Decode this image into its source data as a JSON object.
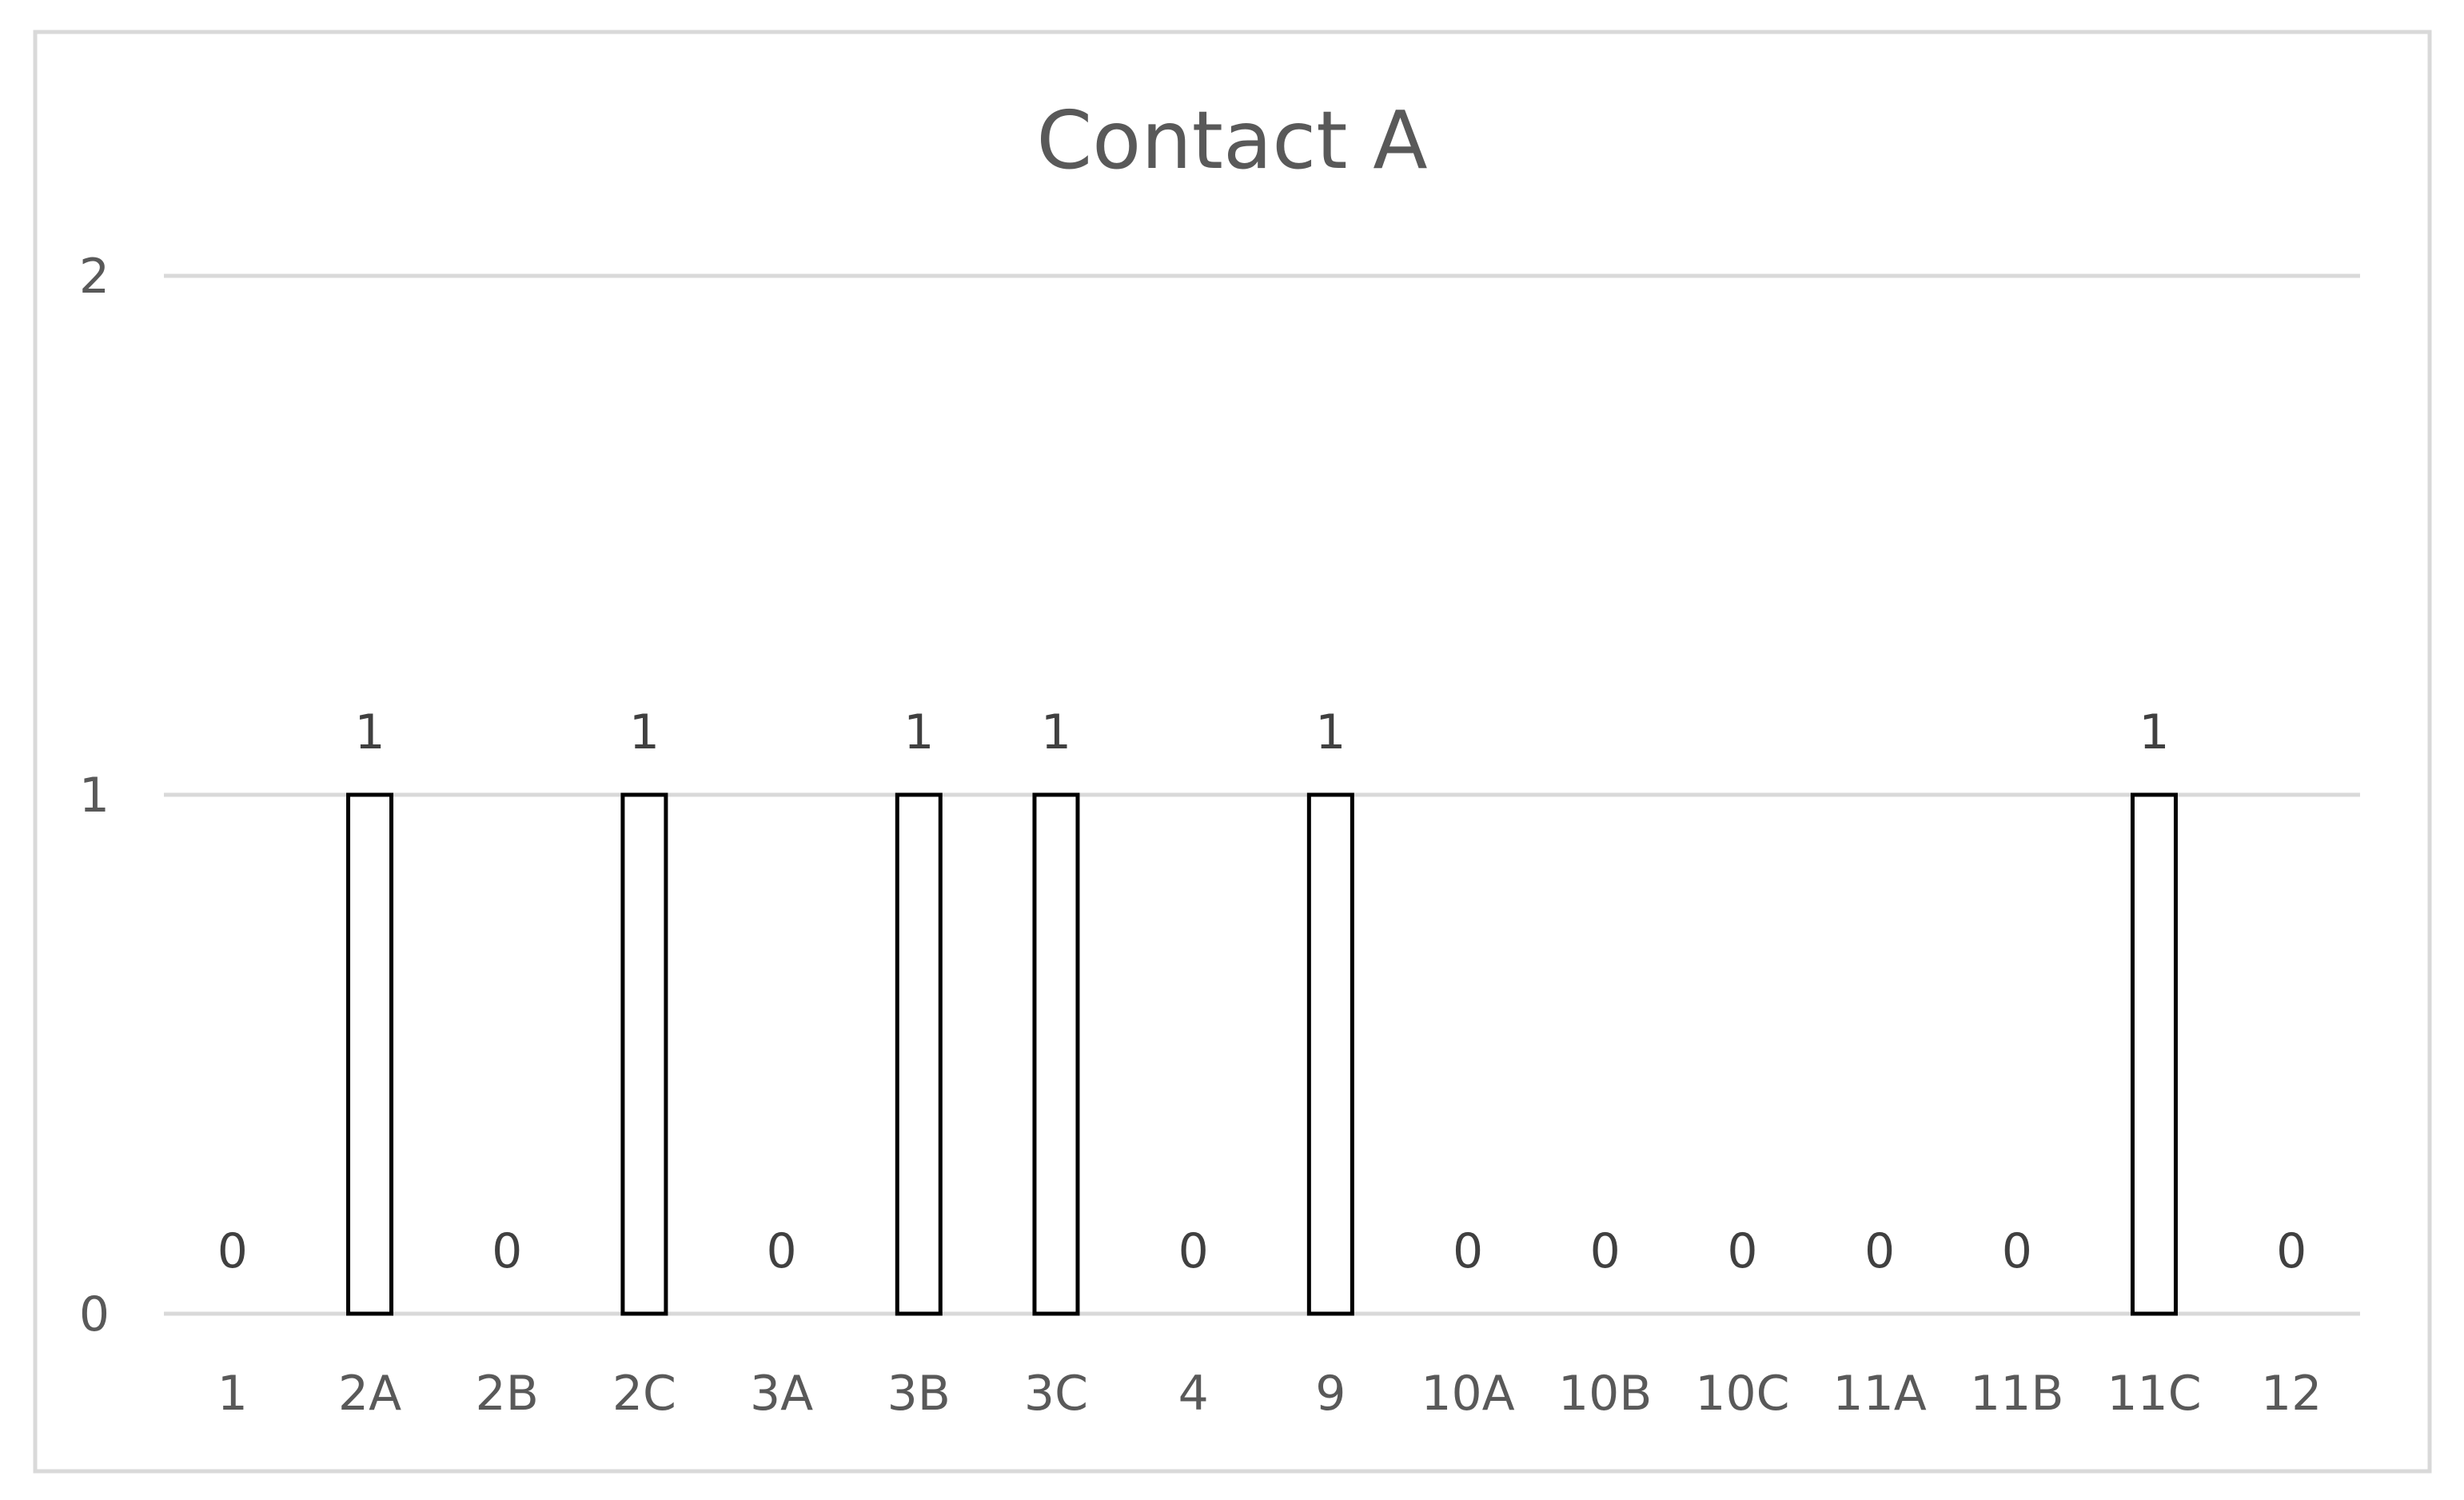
{
  "chart_data": {
    "type": "bar",
    "title": "Contact A",
    "xlabel": "",
    "ylabel": "",
    "categories": [
      "1",
      "2A",
      "2B",
      "2C",
      "3A",
      "3B",
      "3C",
      "4",
      "9",
      "10A",
      "10B",
      "10C",
      "11A",
      "11B",
      "11C",
      "12"
    ],
    "values": [
      0,
      1,
      0,
      1,
      0,
      1,
      1,
      0,
      1,
      0,
      0,
      0,
      0,
      0,
      1,
      0
    ],
    "data_labels": [
      "0",
      "1",
      "0",
      "1",
      "0",
      "1",
      "1",
      "0",
      "1",
      "0",
      "0",
      "0",
      "0",
      "0",
      "1",
      "0"
    ],
    "ylim": [
      0,
      2
    ],
    "y_ticks": [
      "0",
      "1",
      "2"
    ],
    "grid": true,
    "legend": "none",
    "colors": {
      "bar_fill": "#ffffff",
      "bar_stroke": "#000000",
      "grid": "#d9d9d9",
      "text": "#595959"
    }
  }
}
